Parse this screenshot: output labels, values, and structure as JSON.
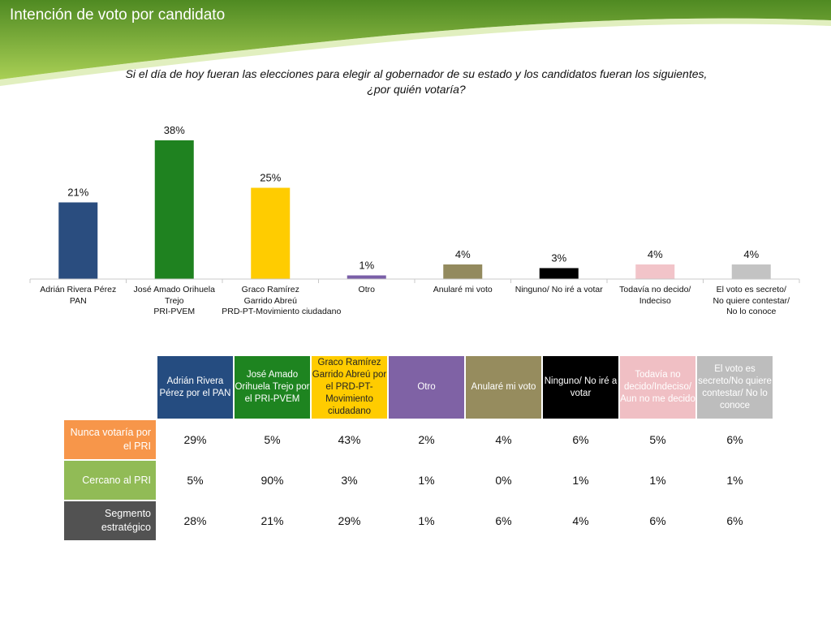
{
  "header": {
    "title": "Intención de voto por candidato",
    "colors": {
      "dark_green": "#4f8a22",
      "light_green": "#a9cf55"
    }
  },
  "question": {
    "line1": "Si el día de hoy fueran las elecciones para elegir al gobernador de su estado y los candidatos fueran los siguientes,",
    "line2": "¿por quién votaría?"
  },
  "chart_data": [
    {
      "type": "bar",
      "title": "",
      "xlabel": "",
      "ylabel": "",
      "ylim": [
        0,
        40
      ],
      "grid": false,
      "legend": "none",
      "categories": [
        [
          "Adrián Rivera Pérez",
          "PAN"
        ],
        [
          "José Amado Orihuela",
          "Trejo",
          "PRI-PVEM"
        ],
        [
          "Graco Ramírez",
          "Garrido Abreú",
          "PRD-PT-Movimiento ciudadano"
        ],
        [
          "Otro"
        ],
        [
          "Anularé mi voto"
        ],
        [
          "Ninguno/ No iré a votar"
        ],
        [
          "Todavía no decido/",
          "Indeciso"
        ],
        [
          "El voto es secreto/",
          "No quiere contestar/",
          "No lo conoce"
        ]
      ],
      "values": [
        21,
        38,
        25,
        1,
        4,
        3,
        4,
        4
      ],
      "labels": [
        "21%",
        "38%",
        "25%",
        "1%",
        "4%",
        "3%",
        "4%",
        "4%"
      ],
      "colors": [
        "#2a4d7f",
        "#1f8220",
        "#ffcc00",
        "#7a5ea8",
        "#938a5e",
        "#000000",
        "#f2c4c9",
        "#c3c3c3"
      ]
    },
    {
      "type": "table",
      "columns": [
        {
          "label": "Adrián Rivera Pérez por el PAN",
          "color": "#254c80"
        },
        {
          "label": "José Amado Orihuela Trejo por el PRI-PVEM",
          "color": "#1e8420"
        },
        {
          "label": "Graco Ramírez Garrido Abreú por el PRD-PT-Movimiento ciudadano",
          "color": "#ffcc00",
          "text_color": "#222222"
        },
        {
          "label": "Otro",
          "color": "#7f62a5"
        },
        {
          "label": "Anularé mi voto",
          "color": "#968c5e"
        },
        {
          "label": "Ninguno/ No iré a votar",
          "color": "#000000"
        },
        {
          "label": "Todavía no decido/Indeciso/ Aun no me decido",
          "color": "#f0bfc4"
        },
        {
          "label": "El voto es secreto/No quiere contestar/ No lo conoce",
          "color": "#bdbdbd"
        }
      ],
      "rows": [
        {
          "label": "Nunca votaría por el PRI",
          "color": "#f7964a",
          "values": [
            "29%",
            "5%",
            "43%",
            "2%",
            "4%",
            "6%",
            "5%",
            "6%"
          ]
        },
        {
          "label": "Cercano al PRI",
          "color": "#91bb56",
          "values": [
            "5%",
            "90%",
            "3%",
            "1%",
            "0%",
            "1%",
            "1%",
            "1%"
          ]
        },
        {
          "label": "Segmento estratégico",
          "color": "#525252",
          "values": [
            "28%",
            "21%",
            "29%",
            "1%",
            "6%",
            "4%",
            "6%",
            "6%"
          ]
        }
      ]
    }
  ]
}
